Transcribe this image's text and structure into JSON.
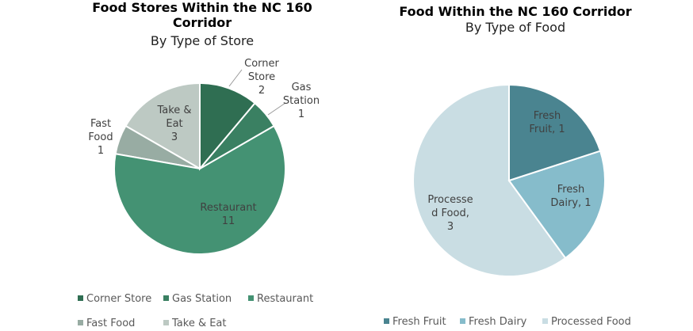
{
  "chart_data": [
    {
      "type": "pie",
      "title": "Food Stores Within the NC 160 Corridor",
      "subtitle": "By Type of Store",
      "categories": [
        "Corner Store",
        "Gas Station",
        "Restaurant",
        "Fast Food",
        "Take & Eat"
      ],
      "values": [
        2,
        1,
        11,
        1,
        3
      ],
      "colors": [
        "#2f6e52",
        "#3a8062",
        "#449273",
        "#98aca3",
        "#bdc9c3"
      ],
      "legend": "bottom"
    },
    {
      "type": "pie",
      "title": "Food Within the NC 160 Corridor",
      "subtitle": "By Type of Food",
      "categories": [
        "Fresh Fruit",
        "Fresh Dairy",
        "Processed Food"
      ],
      "values": [
        1,
        1,
        3
      ],
      "colors": [
        "#4a8490",
        "#86bccb",
        "#c9dde3"
      ],
      "legend": "bottom"
    }
  ],
  "labels": {
    "left": {
      "corner": [
        "Corner",
        "Store",
        "2"
      ],
      "gas": [
        "Gas",
        "Station",
        "1"
      ],
      "rest": [
        "Restaurant",
        "11"
      ],
      "fast": [
        "Fast",
        "Food",
        "1"
      ],
      "take": [
        "Take &",
        "Eat",
        "3"
      ]
    },
    "right": {
      "fruit": [
        "Fresh",
        "Fruit, 1"
      ],
      "dairy": [
        "Fresh",
        "Dairy, 1"
      ],
      "proc": [
        "Processe",
        "d Food,",
        "3"
      ]
    }
  },
  "titles": {
    "left1": "Food Stores Within the NC 160",
    "left2": "Corridor"
  }
}
